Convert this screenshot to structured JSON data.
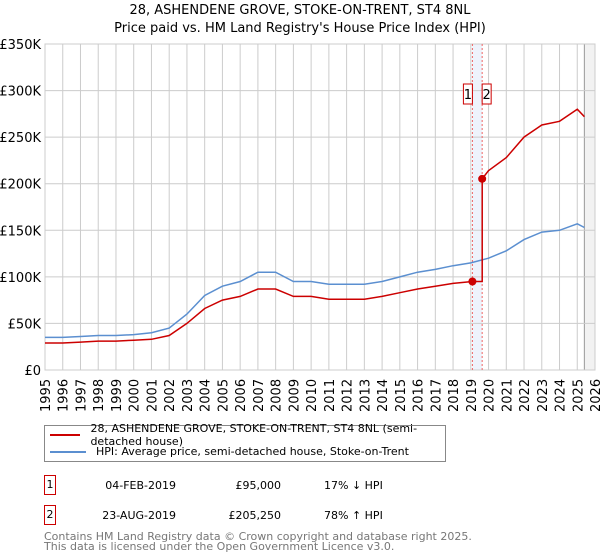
{
  "title": "28, ASHENDENE GROVE, STOKE-ON-TRENT, ST4 8NL",
  "subtitle": "Price paid vs. HM Land Registry's House Price Index (HPI)",
  "chart_data": {
    "type": "line",
    "xlim": [
      1995,
      2026
    ],
    "ylim": [
      0,
      350000
    ],
    "x_ticks": [
      "1995",
      "1996",
      "1997",
      "1998",
      "1999",
      "2000",
      "2001",
      "2002",
      "2003",
      "2004",
      "2005",
      "2006",
      "2007",
      "2008",
      "2009",
      "2010",
      "2011",
      "2012",
      "2013",
      "2014",
      "2015",
      "2016",
      "2017",
      "2018",
      "2019",
      "2020",
      "2021",
      "2022",
      "2023",
      "2024",
      "2025",
      "2026"
    ],
    "y_ticks": [
      {
        "v": 0,
        "label": "£0"
      },
      {
        "v": 50000,
        "label": "£50K"
      },
      {
        "v": 100000,
        "label": "£100K"
      },
      {
        "v": 150000,
        "label": "£150K"
      },
      {
        "v": 200000,
        "label": "£200K"
      },
      {
        "v": 250000,
        "label": "£250K"
      },
      {
        "v": 300000,
        "label": "£300K"
      },
      {
        "v": 350000,
        "label": "£350K"
      }
    ],
    "series": [
      {
        "name": "28, ASHENDENE GROVE, STOKE-ON-TRENT, ST4 8NL (semi-detached house)",
        "color": "#cc0000",
        "x": [
          1995,
          1996,
          1997,
          1998,
          1999,
          2000,
          2001,
          2002,
          2003,
          2004,
          2005,
          2006,
          2007,
          2008,
          2009,
          2010,
          2011,
          2012,
          2013,
          2014,
          2015,
          2016,
          2017,
          2018,
          2019.09,
          2019.64,
          2020,
          2021,
          2022,
          2023,
          2024,
          2025,
          2025.4
        ],
        "y": [
          29000,
          29000,
          30000,
          31000,
          31000,
          32000,
          33000,
          37000,
          50000,
          66000,
          75000,
          79000,
          87000,
          87000,
          79000,
          79000,
          76000,
          76000,
          76000,
          79000,
          83000,
          87000,
          90000,
          93000,
          95000,
          205250,
          214000,
          228000,
          250000,
          263000,
          267000,
          280000,
          272000
        ]
      },
      {
        "name": "HPI: Average price, semi-detached house, Stoke-on-Trent",
        "color": "#5b8fd0",
        "x": [
          1995,
          1996,
          1997,
          1998,
          1999,
          2000,
          2001,
          2002,
          2003,
          2004,
          2005,
          2006,
          2007,
          2008,
          2009,
          2010,
          2011,
          2012,
          2013,
          2014,
          2015,
          2016,
          2017,
          2018,
          2019,
          2020,
          2021,
          2022,
          2023,
          2024,
          2025,
          2025.4
        ],
        "y": [
          35000,
          35000,
          36000,
          37000,
          37000,
          38000,
          40000,
          45000,
          60000,
          80000,
          90000,
          95000,
          105000,
          105000,
          95000,
          95000,
          92000,
          92000,
          92000,
          95000,
          100000,
          105000,
          108000,
          112000,
          115000,
          120000,
          128000,
          140000,
          148000,
          150000,
          157000,
          153000
        ]
      }
    ],
    "annotations": [
      {
        "label": "1",
        "x": 2019.09,
        "y": 95000
      },
      {
        "label": "2",
        "x": 2019.64,
        "y": 205250
      }
    ]
  },
  "legend": {
    "red": "28, ASHENDENE GROVE, STOKE-ON-TRENT, ST4 8NL (semi-detached house)",
    "blue": "HPI: Average price, semi-detached house, Stoke-on-Trent"
  },
  "sales": [
    {
      "num": "1",
      "date": "04-FEB-2019",
      "price": "£95,000",
      "hpi": "17% ↓ HPI"
    },
    {
      "num": "2",
      "date": "23-AUG-2019",
      "price": "£205,250",
      "hpi": "78% ↑ HPI"
    }
  ],
  "footer": [
    "Contains HM Land Registry data © Crown copyright and database right 2025.",
    "This data is licensed under the Open Government Licence v3.0."
  ]
}
